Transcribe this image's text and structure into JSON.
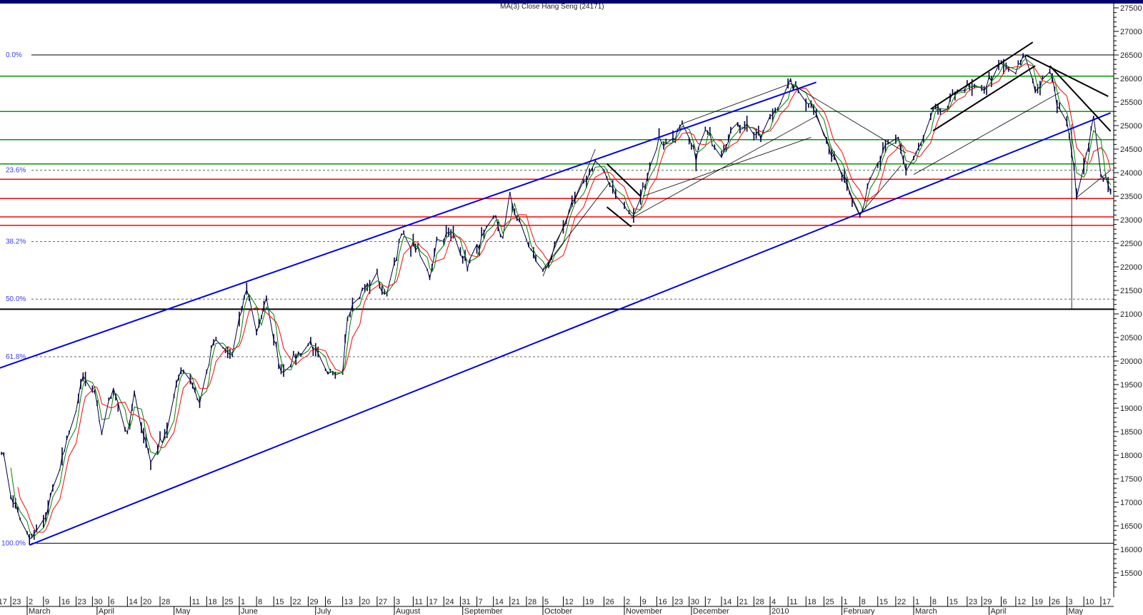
{
  "chart_data": {
    "type": "line",
    "title": "MA(3) Close Hang Seng (24171)",
    "xlabel": "",
    "ylabel": "",
    "ylim": [
      15500,
      27500
    ],
    "y_ticks": [
      15500,
      16000,
      16500,
      17000,
      17500,
      18000,
      18500,
      19000,
      19500,
      20000,
      20500,
      21000,
      21500,
      22000,
      22500,
      23000,
      23500,
      24000,
      24500,
      25000,
      25500,
      26000,
      26500,
      27000,
      27500
    ],
    "y_axis_side": "right",
    "grid": false,
    "legend": "none",
    "x_ticks": [
      "2009-02-17",
      "2009-02-23",
      "2009-03-02",
      "2009-03-09",
      "2009-03-16",
      "2009-03-23",
      "2009-03-30",
      "2009-04-06",
      "2009-04-14",
      "2009-04-20",
      "2009-04-28",
      "2009-05-11",
      "2009-05-18",
      "2009-05-25",
      "2009-06-01",
      "2009-06-08",
      "2009-06-15",
      "2009-06-22",
      "2009-06-29",
      "2009-07-06",
      "2009-07-13",
      "2009-07-20",
      "2009-07-27",
      "2009-08-03",
      "2009-08-11",
      "2009-08-17",
      "2009-08-24",
      "2009-08-31",
      "2009-09-07",
      "2009-09-14",
      "2009-09-21",
      "2009-09-28",
      "2009-10-05",
      "2009-10-12",
      "2009-10-19",
      "2009-10-26",
      "2009-11-02",
      "2009-11-09",
      "2009-11-16",
      "2009-11-23",
      "2009-11-30",
      "2009-12-07",
      "2009-12-14",
      "2009-12-21",
      "2009-12-28",
      "2010-01-04",
      "2010-01-11",
      "2010-01-18",
      "2010-01-25",
      "2010-02-01",
      "2010-02-08",
      "2010-02-15",
      "2010-02-22",
      "2010-03-01",
      "2010-03-08",
      "2010-03-15",
      "2010-03-23",
      "2010-03-29",
      "2010-04-06",
      "2010-04-12",
      "2010-04-19",
      "2010-04-26",
      "2010-05-03",
      "2010-05-10",
      "2010-05-17"
    ],
    "x_tick_labels": [
      "17",
      "23",
      "2",
      "9",
      "16",
      "23",
      "30",
      "6",
      "14",
      "20",
      "28",
      "11",
      "18",
      "25",
      "1",
      "8",
      "15",
      "22",
      "29",
      "6",
      "13",
      "20",
      "27",
      "3",
      "11",
      "17",
      "24",
      "31",
      "7",
      "14",
      "21",
      "28",
      "5",
      "12",
      "19",
      "26",
      "2",
      "9",
      "16",
      "23",
      "30",
      "7",
      "14",
      "21",
      "28",
      "4",
      "11",
      "18",
      "25",
      "1",
      "8",
      "15",
      "22",
      "1",
      "8",
      "15",
      "23",
      "29",
      "6",
      "12",
      "19",
      "26",
      "3",
      "10",
      "17"
    ],
    "months": [
      {
        "date": "2009-03-02",
        "label": "March"
      },
      {
        "date": "2009-04-01",
        "label": "April"
      },
      {
        "date": "2009-05-04",
        "label": "May"
      },
      {
        "date": "2009-06-01",
        "label": "June"
      },
      {
        "date": "2009-07-02",
        "label": "July"
      },
      {
        "date": "2009-08-03",
        "label": "August"
      },
      {
        "date": "2009-09-01",
        "label": "September"
      },
      {
        "date": "2009-10-05",
        "label": "October"
      },
      {
        "date": "2009-11-02",
        "label": "November"
      },
      {
        "date": "2009-12-01",
        "label": "December"
      },
      {
        "date": "2010-01-04",
        "label": "2010"
      },
      {
        "date": "2010-02-01",
        "label": "February"
      },
      {
        "date": "2010-03-01",
        "label": "March"
      },
      {
        "date": "2010-04-01",
        "label": "April"
      },
      {
        "date": "2010-05-03",
        "label": "May"
      }
    ],
    "series": [
      {
        "color": "#000040",
        "points": [
          [
            "2009-02-19",
            18170
          ],
          [
            "2009-02-23",
            17170
          ],
          [
            "2009-03-03",
            16170
          ],
          [
            "2009-03-09",
            16560
          ],
          [
            "2009-03-16",
            17790
          ],
          [
            "2009-03-20",
            18400
          ],
          [
            "2009-03-26",
            19640
          ],
          [
            "2009-03-31",
            19260
          ],
          [
            "2009-04-03",
            18490
          ],
          [
            "2009-04-08",
            19490
          ],
          [
            "2009-04-14",
            18400
          ],
          [
            "2009-04-17",
            19260
          ],
          [
            "2009-04-24",
            17870
          ],
          [
            "2009-05-01",
            18560
          ],
          [
            "2009-05-07",
            19870
          ],
          [
            "2009-05-11",
            19640
          ],
          [
            "2009-05-15",
            19100
          ],
          [
            "2009-05-21",
            20410
          ],
          [
            "2009-05-29",
            20100
          ],
          [
            "2009-06-04",
            21570
          ],
          [
            "2009-06-08",
            20640
          ],
          [
            "2009-06-12",
            21260
          ],
          [
            "2009-06-18",
            19790
          ],
          [
            "2009-06-24",
            20100
          ],
          [
            "2009-06-30",
            20410
          ],
          [
            "2009-07-07",
            19640
          ],
          [
            "2009-07-13",
            19870
          ],
          [
            "2009-07-15",
            21030
          ],
          [
            "2009-07-21",
            21490
          ],
          [
            "2009-07-27",
            21800
          ],
          [
            "2009-07-30",
            21340
          ],
          [
            "2009-08-06",
            22650
          ],
          [
            "2009-08-12",
            22420
          ],
          [
            "2009-08-18",
            21800
          ],
          [
            "2009-08-21",
            22570
          ],
          [
            "2009-08-28",
            22720
          ],
          [
            "2009-09-03",
            22030
          ],
          [
            "2009-09-09",
            22570
          ],
          [
            "2009-09-15",
            23030
          ],
          [
            "2009-09-18",
            22570
          ],
          [
            "2009-09-21",
            23500
          ],
          [
            "2009-09-24",
            23030
          ],
          [
            "2009-09-30",
            22340
          ],
          [
            "2009-10-05",
            21880
          ],
          [
            "2009-10-12",
            22720
          ],
          [
            "2009-10-16",
            23500
          ],
          [
            "2009-10-23",
            24190
          ],
          [
            "2009-10-28",
            23800
          ],
          [
            "2009-11-02",
            23270
          ],
          [
            "2009-11-06",
            23030
          ],
          [
            "2009-11-11",
            23800
          ],
          [
            "2009-11-17",
            24730
          ],
          [
            "2009-11-20",
            24580
          ],
          [
            "2009-11-27",
            24960
          ],
          [
            "2009-12-03",
            24340
          ],
          [
            "2009-12-07",
            24880
          ],
          [
            "2009-12-14",
            24420
          ],
          [
            "2009-12-18",
            24880
          ],
          [
            "2009-12-24",
            25040
          ],
          [
            "2009-12-31",
            24730
          ],
          [
            "2010-01-06",
            25350
          ],
          [
            "2010-01-12",
            25890
          ],
          [
            "2010-01-18",
            25580
          ],
          [
            "2010-01-22",
            25350
          ],
          [
            "2010-01-28",
            24340
          ],
          [
            "2010-02-02",
            23960
          ],
          [
            "2010-02-08",
            23110
          ],
          [
            "2010-02-12",
            23800
          ],
          [
            "2010-02-18",
            24500
          ],
          [
            "2010-02-23",
            24730
          ],
          [
            "2010-02-26",
            24040
          ],
          [
            "2010-03-04",
            24580
          ],
          [
            "2010-03-09",
            25270
          ],
          [
            "2010-03-15",
            25350
          ],
          [
            "2010-03-19",
            25810
          ],
          [
            "2010-03-29",
            25730
          ],
          [
            "2010-04-01",
            25970
          ],
          [
            "2010-04-06",
            26270
          ],
          [
            "2010-04-12",
            26120
          ],
          [
            "2010-04-16",
            26500
          ],
          [
            "2010-04-20",
            25730
          ],
          [
            "2010-04-26",
            26200
          ],
          [
            "2010-04-29",
            25430
          ],
          [
            "2010-05-04",
            24890
          ],
          [
            "2010-05-07",
            23580
          ],
          [
            "2010-05-11",
            24420
          ],
          [
            "2010-05-14",
            25120
          ],
          [
            "2010-05-17",
            24040
          ],
          [
            "2010-05-21",
            23580
          ]
        ]
      }
    ],
    "moving_averages": [
      {
        "color": "#ff0000"
      },
      {
        "color": "#008000"
      }
    ],
    "fibonacci": {
      "low": 16130,
      "high": 26500,
      "color": "#3a3aff",
      "levels": [
        {
          "label": "0.0%",
          "ratio": 0.0
        },
        {
          "label": "23.6%",
          "ratio": 0.236
        },
        {
          "label": "38.2%",
          "ratio": 0.382
        },
        {
          "label": "50.0%",
          "ratio": 0.5
        },
        {
          "label": "61.8%",
          "ratio": 0.618
        },
        {
          "label": "100.0%",
          "ratio": 1.0
        }
      ]
    },
    "horizontal_levels": [
      {
        "price": 26050,
        "color": "#009900"
      },
      {
        "price": 25300,
        "color": "#009900"
      },
      {
        "price": 24700,
        "color": "#009900"
      },
      {
        "price": 24185,
        "color": "#009900"
      },
      {
        "price": 23860,
        "color": "#ff0000"
      },
      {
        "price": 23450,
        "color": "#ff0000"
      },
      {
        "price": 23060,
        "color": "#ff0000"
      },
      {
        "price": 22880,
        "color": "#ff0000"
      },
      {
        "price": 21100,
        "color": "#000000"
      }
    ],
    "trendlines": [
      {
        "from": [
          "2009-02-17",
          19830
        ],
        "to": [
          "2010-01-22",
          25920
        ],
        "color": "#0000ee",
        "weight": "thick"
      },
      {
        "from": [
          "2009-03-03",
          16090
        ],
        "to": [
          "2010-05-21",
          25270
        ],
        "color": "#0000ee",
        "weight": "thick"
      },
      {
        "from": [
          "2009-10-27",
          24190
        ],
        "to": [
          "2009-11-09",
          23500
        ],
        "color": "#000000",
        "weight": "thick"
      },
      {
        "from": [
          "2009-10-27",
          23270
        ],
        "to": [
          "2009-11-05",
          22850
        ],
        "color": "#000000",
        "weight": "thick"
      },
      {
        "from": [
          "2009-10-05",
          21800
        ],
        "to": [
          "2009-10-23",
          24500
        ],
        "color": "#000000",
        "weight": "thin"
      },
      {
        "from": [
          "2009-10-05",
          21950
        ],
        "to": [
          "2009-10-28",
          23800
        ],
        "color": "#000000",
        "weight": "thin"
      },
      {
        "from": [
          "2009-11-05",
          23030
        ],
        "to": [
          "2010-01-22",
          25200
        ],
        "color": "#000000",
        "weight": "thin"
      },
      {
        "from": [
          "2009-11-10",
          23500
        ],
        "to": [
          "2010-01-20",
          24750
        ],
        "color": "#000000",
        "weight": "thin"
      },
      {
        "from": [
          "2009-11-27",
          25040
        ],
        "to": [
          "2010-01-12",
          25890
        ],
        "color": "#000000",
        "weight": "thin"
      },
      {
        "from": [
          "2010-01-12",
          25890
        ],
        "to": [
          "2010-02-26",
          24420
        ],
        "color": "#000000",
        "weight": "thin"
      },
      {
        "from": [
          "2010-01-22",
          25200
        ],
        "to": [
          "2010-02-08",
          23110
        ],
        "color": "#000000",
        "weight": "thin"
      },
      {
        "from": [
          "2010-02-08",
          23110
        ],
        "to": [
          "2010-02-24",
          24150
        ],
        "color": "#000000",
        "weight": "thin"
      },
      {
        "from": [
          "2010-03-01",
          23960
        ],
        "to": [
          "2010-04-30",
          25700
        ],
        "color": "#000000",
        "weight": "thin"
      },
      {
        "from": [
          "2010-03-08",
          25350
        ],
        "to": [
          "2010-04-19",
          26770
        ],
        "color": "#000000",
        "weight": "thick"
      },
      {
        "from": [
          "2010-03-09",
          24890
        ],
        "to": [
          "2010-04-20",
          26270
        ],
        "color": "#000000",
        "weight": "thick"
      },
      {
        "from": [
          "2010-04-16",
          26500
        ],
        "to": [
          "2010-05-20",
          25620
        ],
        "color": "#000000",
        "weight": "thick"
      },
      {
        "from": [
          "2010-04-26",
          26270
        ],
        "to": [
          "2010-05-21",
          24880
        ],
        "color": "#000000",
        "weight": "thick"
      },
      {
        "from": [
          "2010-05-05",
          25030
        ],
        "to": [
          "2010-05-05",
          21100
        ],
        "color": "#000000",
        "weight": "thin"
      },
      {
        "from": [
          "2010-05-07",
          23470
        ],
        "to": [
          "2010-05-21",
          24050
        ],
        "color": "#000000",
        "weight": "thin"
      }
    ]
  }
}
